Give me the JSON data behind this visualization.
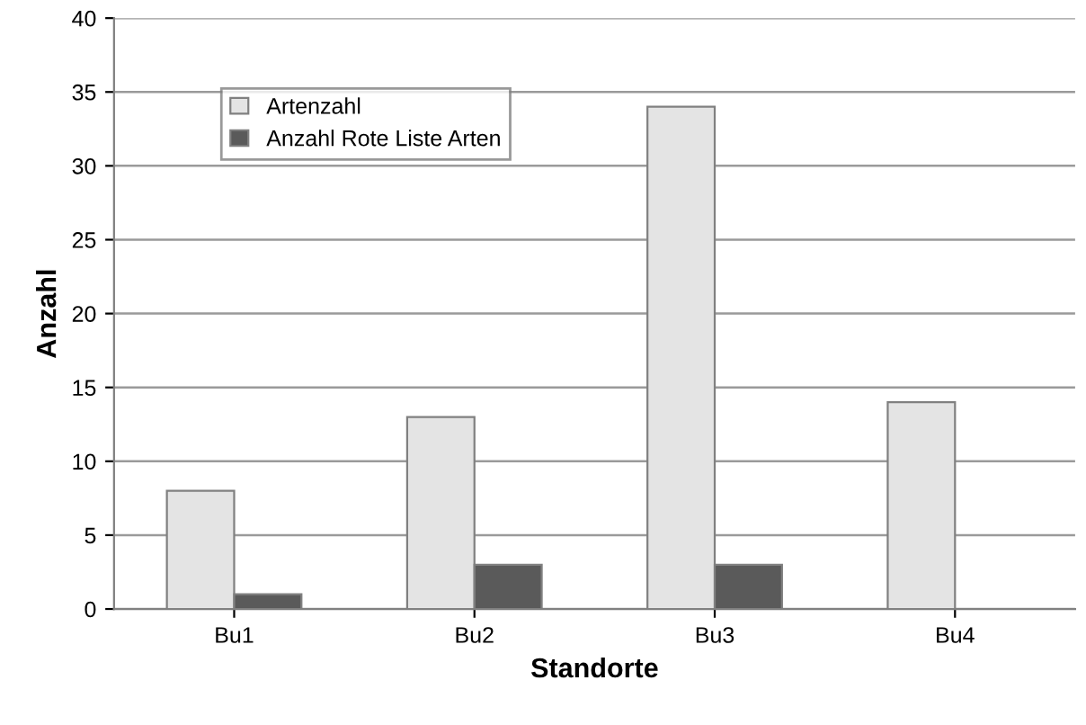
{
  "chart_data": {
    "type": "bar",
    "xlabel": "Standorte",
    "ylabel": "Anzahl",
    "categories": [
      "Bu1",
      "Bu2",
      "Bu3",
      "Bu4"
    ],
    "series": [
      {
        "name": "Artenzahl",
        "color": "#e4e4e4",
        "values": [
          8,
          13,
          34,
          14
        ]
      },
      {
        "name": "Anzahl Rote Liste Arten",
        "color": "#5a5a5a",
        "values": [
          1,
          3,
          3,
          null
        ]
      }
    ],
    "ylim": [
      0,
      40
    ],
    "yticks": [
      0,
      5,
      10,
      15,
      20,
      25,
      30,
      35,
      40
    ],
    "grid": "y",
    "legend": "top left"
  }
}
